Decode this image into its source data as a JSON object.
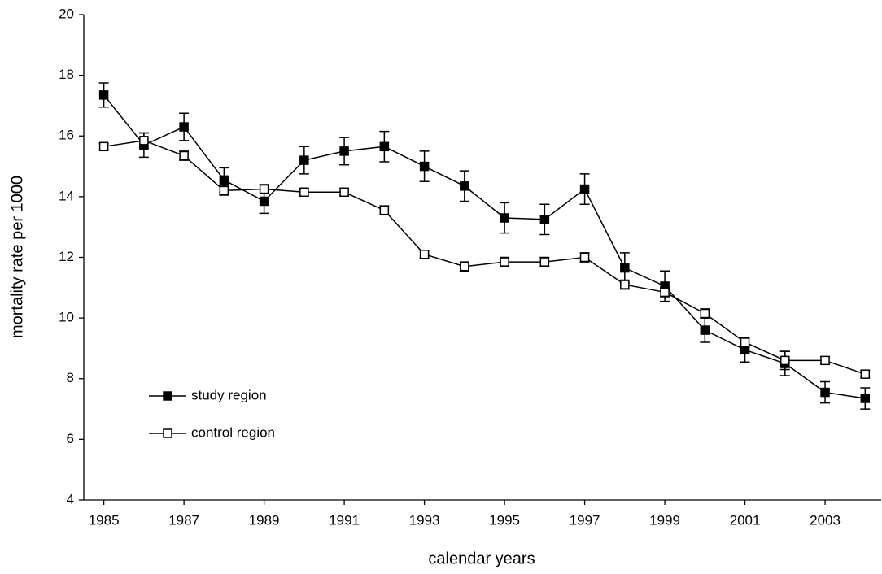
{
  "chart_data": {
    "type": "line",
    "x_label": "calendar years",
    "y_label": "mortality rate per 1000",
    "x": [
      1985,
      1986,
      1987,
      1988,
      1989,
      1990,
      1991,
      1992,
      1993,
      1994,
      1995,
      1996,
      1997,
      1998,
      1999,
      2000,
      2001,
      2002,
      2003,
      2004
    ],
    "xlim": [
      1984.5,
      2004.4
    ],
    "xticks": [
      1985,
      1987,
      1989,
      1991,
      1993,
      1995,
      1997,
      1999,
      2001,
      2003
    ],
    "ylim": [
      4,
      20
    ],
    "yticks": [
      4,
      6,
      8,
      10,
      12,
      14,
      16,
      18,
      20
    ],
    "grid": false,
    "legend": "lower left",
    "series": [
      {
        "name": "study region",
        "color": "#000000",
        "marker": "filled-square",
        "values": [
          17.35,
          15.7,
          16.3,
          14.55,
          13.85,
          15.2,
          15.5,
          15.65,
          15.0,
          14.35,
          13.3,
          13.25,
          14.25,
          11.65,
          11.05,
          9.6,
          8.95,
          8.5,
          7.55,
          7.35
        ],
        "errors": [
          0.4,
          0.4,
          0.45,
          0.4,
          0.4,
          0.45,
          0.45,
          0.5,
          0.5,
          0.5,
          0.5,
          0.5,
          0.5,
          0.5,
          0.5,
          0.4,
          0.4,
          0.4,
          0.35,
          0.35
        ]
      },
      {
        "name": "control region",
        "color": "#000000",
        "marker": "open-square",
        "values": [
          15.65,
          15.85,
          15.35,
          14.2,
          14.25,
          14.15,
          14.15,
          13.55,
          12.1,
          11.7,
          11.85,
          11.85,
          12.0,
          11.1,
          10.85,
          10.15,
          9.2,
          8.6,
          8.6,
          8.15
        ],
        "errors": [
          0.1,
          0.25,
          0.15,
          0.15,
          0.15,
          0.12,
          0.12,
          0.15,
          0.12,
          0.15,
          0.15,
          0.15,
          0.15,
          0.15,
          0.15,
          0.15,
          0.15,
          0.3,
          0.12,
          0.12
        ]
      }
    ]
  }
}
